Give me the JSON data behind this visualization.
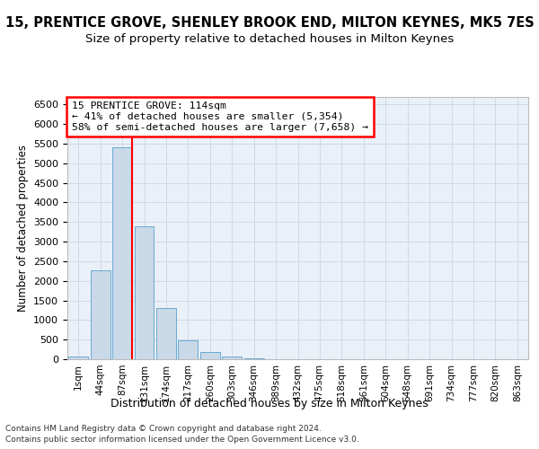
{
  "title1": "15, PRENTICE GROVE, SHENLEY BROOK END, MILTON KEYNES, MK5 7ES",
  "title2": "Size of property relative to detached houses in Milton Keynes",
  "xlabel": "Distribution of detached houses by size in Milton Keynes",
  "ylabel": "Number of detached properties",
  "footer1": "Contains HM Land Registry data © Crown copyright and database right 2024.",
  "footer2": "Contains public sector information licensed under the Open Government Licence v3.0.",
  "bar_labels": [
    "1sqm",
    "44sqm",
    "87sqm",
    "131sqm",
    "174sqm",
    "217sqm",
    "260sqm",
    "303sqm",
    "346sqm",
    "389sqm",
    "432sqm",
    "475sqm",
    "518sqm",
    "561sqm",
    "604sqm",
    "648sqm",
    "691sqm",
    "734sqm",
    "777sqm",
    "820sqm",
    "863sqm"
  ],
  "bar_values": [
    75,
    2270,
    5400,
    3380,
    1310,
    490,
    175,
    80,
    20,
    5,
    2,
    1,
    0,
    0,
    0,
    0,
    0,
    0,
    0,
    0,
    0
  ],
  "bar_color": "#c9d9e8",
  "bar_edge_color": "#6aaad4",
  "annotation_text": "15 PRENTICE GROVE: 114sqm\n← 41% of detached houses are smaller (5,354)\n58% of semi-detached houses are larger (7,658) →",
  "red_line_x": 2.43,
  "ylim": [
    0,
    6700
  ],
  "yticks": [
    0,
    500,
    1000,
    1500,
    2000,
    2500,
    3000,
    3500,
    4000,
    4500,
    5000,
    5500,
    6000,
    6500
  ],
  "grid_color": "#d0d8e8",
  "bg_color": "#eaf0f8",
  "title1_fontsize": 10.5,
  "title2_fontsize": 9.5
}
